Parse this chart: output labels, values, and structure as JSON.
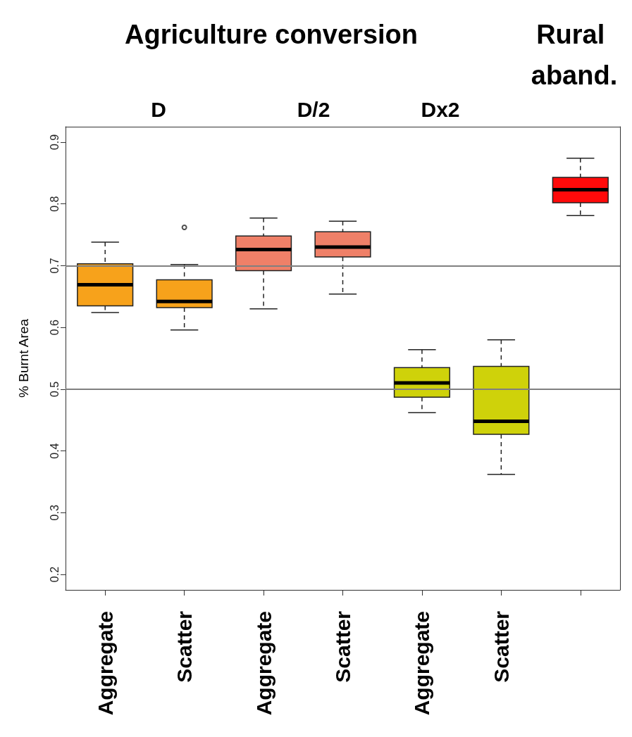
{
  "chart_data": {
    "type": "box",
    "ylabel": "% Burnt Area",
    "annotations": [
      "Agriculture conversion",
      "Rural aband.",
      "D",
      "D/2",
      "Dx2"
    ],
    "categories": [
      "Aggregate",
      "Scatter",
      "Aggregate",
      "Scatter",
      "Aggregate",
      "Scatter",
      null
    ],
    "colors": [
      "#f7a21b",
      "#f7a21b",
      "#ef8068",
      "#ef8068",
      "#cfd20a",
      "#cfd20a",
      "#ff0a0a"
    ],
    "boxes": [
      {
        "low": 0.624,
        "q1": 0.635,
        "median": 0.669,
        "q3": 0.703,
        "high": 0.738
      },
      {
        "low": 0.596,
        "q1": 0.632,
        "median": 0.642,
        "q3": 0.677,
        "high": 0.702,
        "outliers": [
          0.762
        ]
      },
      {
        "low": 0.63,
        "q1": 0.692,
        "median": 0.726,
        "q3": 0.748,
        "high": 0.777
      },
      {
        "low": 0.654,
        "q1": 0.714,
        "median": 0.73,
        "q3": 0.755,
        "high": 0.772
      },
      {
        "low": 0.462,
        "q1": 0.487,
        "median": 0.51,
        "q3": 0.535,
        "high": 0.564
      },
      {
        "low": 0.362,
        "q1": 0.427,
        "median": 0.448,
        "q3": 0.537,
        "high": 0.58
      },
      {
        "low": 0.781,
        "q1": 0.802,
        "median": 0.823,
        "q3": 0.843,
        "high": 0.874
      }
    ],
    "ylim": [
      0.175,
      0.925
    ],
    "yticks": [
      0.2,
      0.3,
      0.4,
      0.5,
      0.6,
      0.7,
      0.8,
      0.9
    ],
    "ref_lines": [
      {
        "axis": "y",
        "value": 0.7,
        "color": "#808080"
      },
      {
        "axis": "y",
        "value": 0.5,
        "color": "#808080"
      }
    ],
    "grid": false
  }
}
